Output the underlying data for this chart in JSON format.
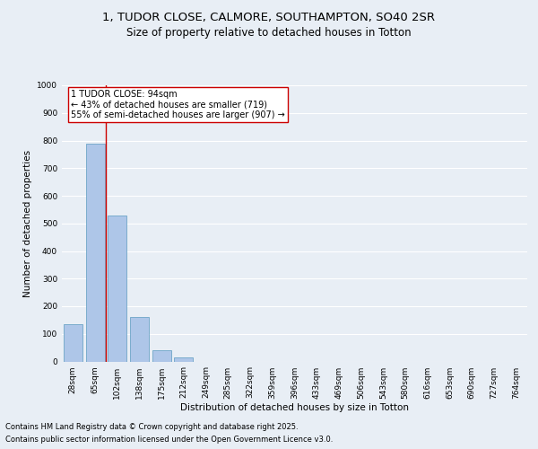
{
  "title_line1": "1, TUDOR CLOSE, CALMORE, SOUTHAMPTON, SO40 2SR",
  "title_line2": "Size of property relative to detached houses in Totton",
  "xlabel": "Distribution of detached houses by size in Totton",
  "ylabel": "Number of detached properties",
  "categories": [
    "28sqm",
    "65sqm",
    "102sqm",
    "138sqm",
    "175sqm",
    "212sqm",
    "249sqm",
    "285sqm",
    "322sqm",
    "359sqm",
    "396sqm",
    "433sqm",
    "469sqm",
    "506sqm",
    "543sqm",
    "580sqm",
    "616sqm",
    "653sqm",
    "690sqm",
    "727sqm",
    "764sqm"
  ],
  "values": [
    135,
    790,
    530,
    160,
    40,
    15,
    0,
    0,
    0,
    0,
    0,
    0,
    0,
    0,
    0,
    0,
    0,
    0,
    0,
    0,
    0
  ],
  "bar_color": "#aec6e8",
  "bar_edge_color": "#5a9abf",
  "bg_color": "#e8eef5",
  "grid_color": "#ffffff",
  "vline_x_index": 1.5,
  "vline_color": "#cc0000",
  "annotation_text": "1 TUDOR CLOSE: 94sqm\n← 43% of detached houses are smaller (719)\n55% of semi-detached houses are larger (907) →",
  "annotation_box_color": "#ffffff",
  "annotation_box_edge": "#cc0000",
  "ylim": [
    0,
    1000
  ],
  "yticks": [
    0,
    100,
    200,
    300,
    400,
    500,
    600,
    700,
    800,
    900,
    1000
  ],
  "footer_line1": "Contains HM Land Registry data © Crown copyright and database right 2025.",
  "footer_line2": "Contains public sector information licensed under the Open Government Licence v3.0.",
  "title_fontsize": 9.5,
  "subtitle_fontsize": 8.5,
  "axis_label_fontsize": 7.5,
  "tick_fontsize": 6.5,
  "annotation_fontsize": 7,
  "footer_fontsize": 6
}
